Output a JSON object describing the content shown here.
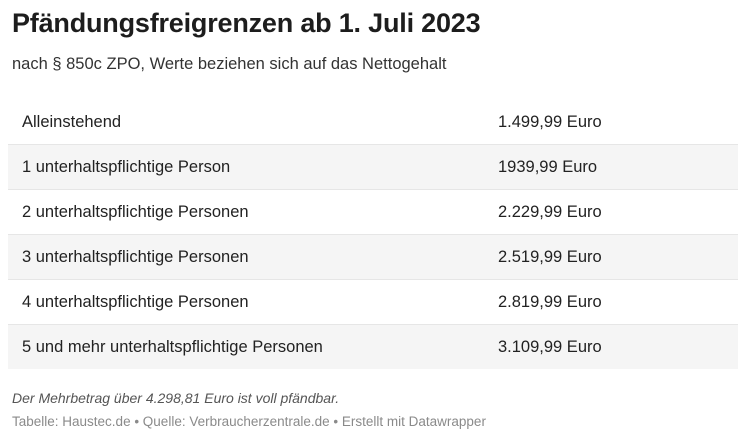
{
  "header": {
    "title": "Pfändungsfreigrenzen ab 1. Juli 2023",
    "subtitle": "nach § 850c ZPO, Werte beziehen sich auf das Nettogehalt"
  },
  "chart_data": {
    "type": "table",
    "rows": [
      {
        "label": "Alleinstehend",
        "value": "1.499,99 Euro"
      },
      {
        "label": "1 unterhaltspflichtige Person",
        "value": "1939,99 Euro"
      },
      {
        "label": "2 unterhaltspflichtige Personen",
        "value": "2.229,99 Euro"
      },
      {
        "label": "3 unterhaltspflichtige Personen",
        "value": "2.519,99 Euro"
      },
      {
        "label": "4 unterhaltspflichtige Personen",
        "value": "2.819,99 Euro"
      },
      {
        "label": "5 und mehr unterhaltspflichtige Personen",
        "value": "3.109,99 Euro"
      }
    ],
    "striped": true,
    "stripe_color": "#f5f5f5"
  },
  "footer": {
    "note": "Der Mehrbetrag über 4.298,81 Euro ist voll pfändbar.",
    "source": "Tabelle: Haustec.de • Quelle: Verbraucherzentrale.de • Erstellt mit Datawrapper"
  }
}
